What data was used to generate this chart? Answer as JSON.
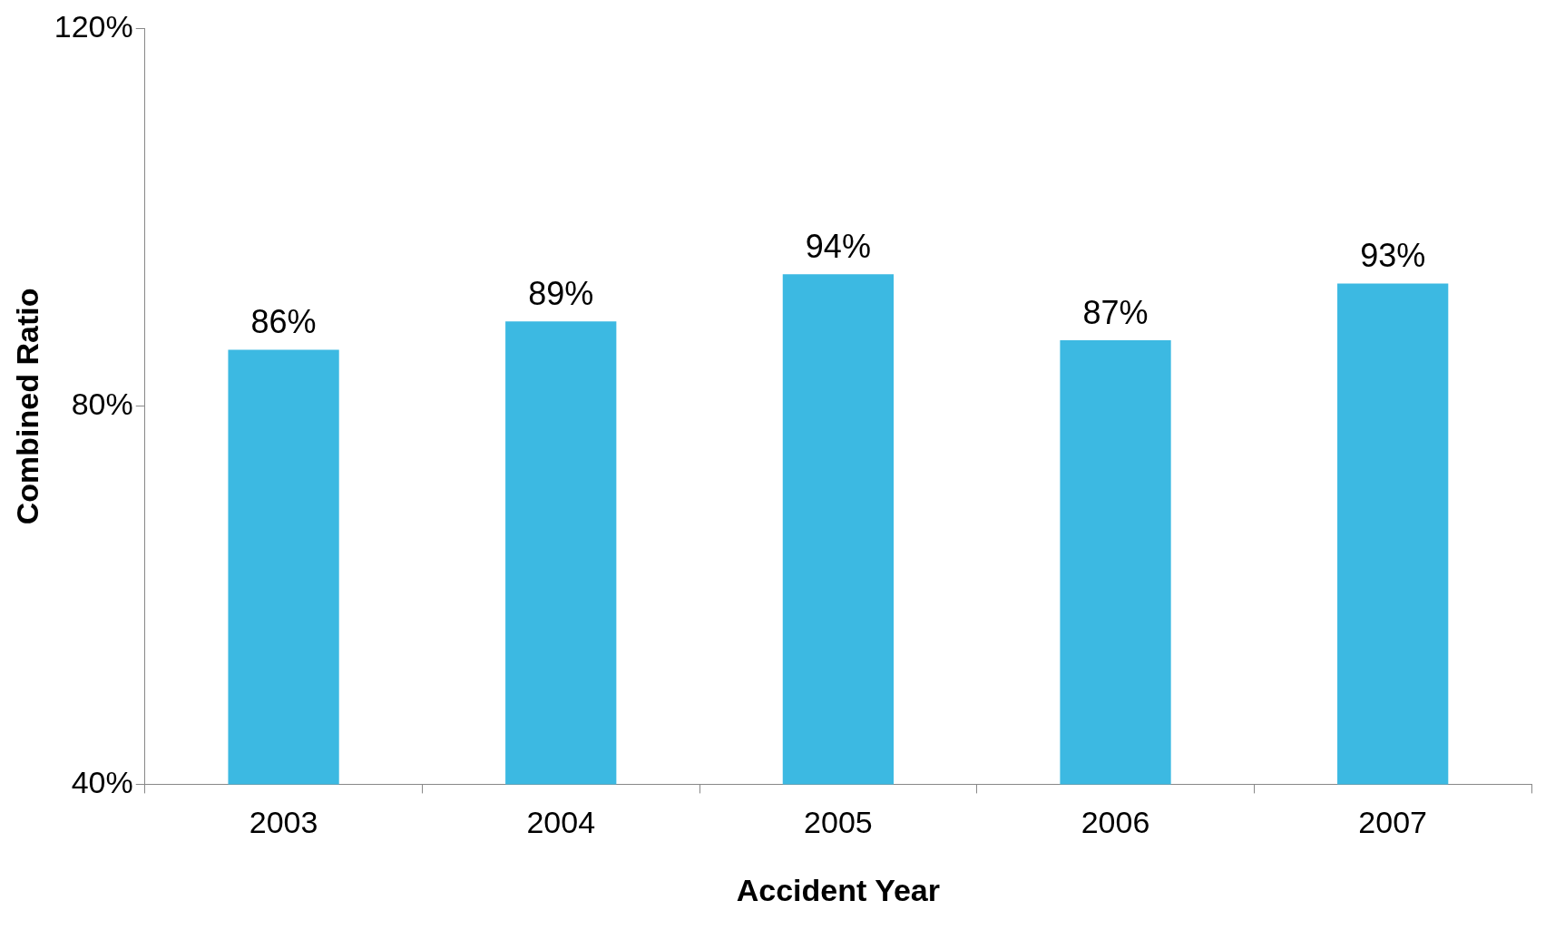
{
  "chart_data": {
    "type": "bar",
    "xlabel": "Accident Year",
    "ylabel": "Combined Ratio",
    "categories": [
      "2003",
      "2004",
      "2005",
      "2006",
      "2007"
    ],
    "values": [
      86,
      89,
      94,
      87,
      93
    ],
    "value_labels": [
      "86%",
      "89%",
      "94%",
      "87%",
      "93%"
    ],
    "color": "#3cb9e2",
    "ylim": [
      40,
      120
    ],
    "yticks": [
      {
        "value": 40,
        "label": "40%"
      },
      {
        "value": 80,
        "label": "80%"
      },
      {
        "value": 120,
        "label": "120%"
      }
    ],
    "grid": false,
    "legend": false
  }
}
